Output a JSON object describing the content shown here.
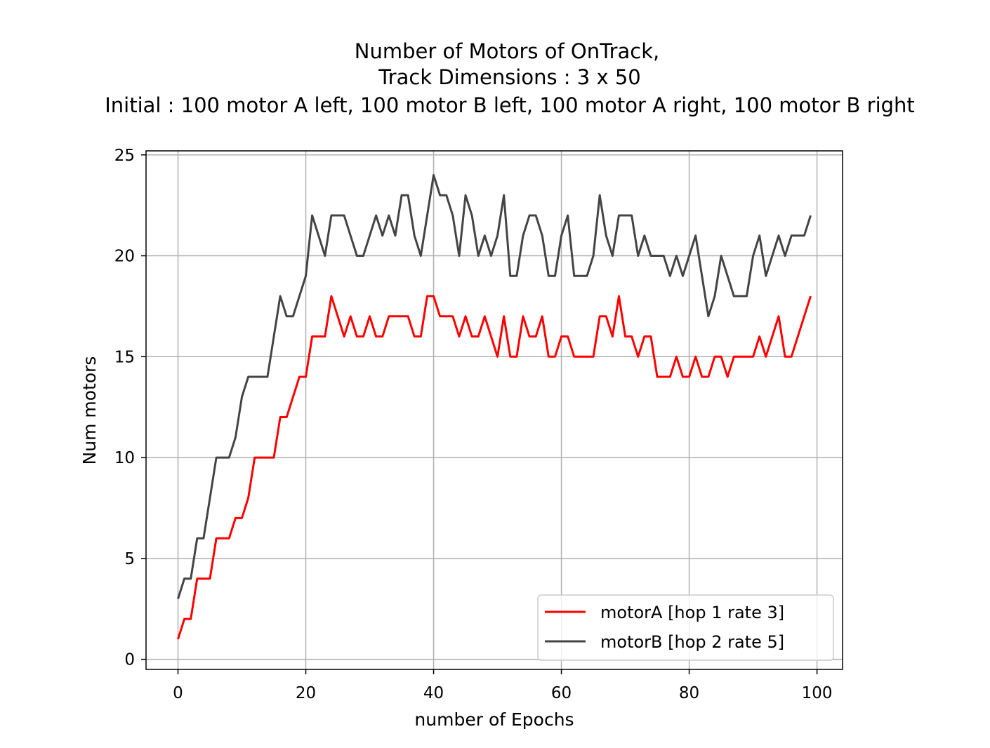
{
  "chart_data": {
    "type": "line",
    "title_lines": [
      "Number of Motors of OnTrack,",
      "Track Dimensions : 3 x 50",
      "Initial : 100 motor A left, 100 motor B left, 100 motor A right, 100 motor B right"
    ],
    "xlabel": "number of Epochs",
    "ylabel": "Num motors",
    "xlim": [
      -5,
      104
    ],
    "ylim": [
      -0.5,
      25.2
    ],
    "xticks": [
      0,
      20,
      40,
      60,
      80,
      100
    ],
    "xtick_labels": [
      "0",
      "20",
      "40",
      "60",
      "80",
      "100"
    ],
    "yticks": [
      0,
      5,
      10,
      15,
      20,
      25
    ],
    "ytick_labels": [
      "0",
      "5",
      "10",
      "15",
      "20",
      "25"
    ],
    "grid": true,
    "legend_position": "lower right",
    "x": [
      0,
      1,
      2,
      3,
      4,
      5,
      6,
      7,
      8,
      9,
      10,
      11,
      12,
      13,
      14,
      15,
      16,
      17,
      18,
      19,
      20,
      21,
      22,
      23,
      24,
      25,
      26,
      27,
      28,
      29,
      30,
      31,
      32,
      33,
      34,
      35,
      36,
      37,
      38,
      39,
      40,
      41,
      42,
      43,
      44,
      45,
      46,
      47,
      48,
      49,
      50,
      51,
      52,
      53,
      54,
      55,
      56,
      57,
      58,
      59,
      60,
      61,
      62,
      63,
      64,
      65,
      66,
      67,
      68,
      69,
      70,
      71,
      72,
      73,
      74,
      75,
      76,
      77,
      78,
      79,
      80,
      81,
      82,
      83,
      84,
      85,
      86,
      87,
      88,
      89,
      90,
      91,
      92,
      93,
      94,
      95,
      96,
      97,
      98,
      99
    ],
    "series": [
      {
        "name": "motorA  [hop 1 rate 3]",
        "color": "#ff0000",
        "values": [
          1,
          2,
          2,
          4,
          4,
          4,
          6,
          6,
          6,
          7,
          7,
          8,
          10,
          10,
          10,
          10,
          12,
          12,
          13,
          14,
          14,
          16,
          16,
          16,
          18,
          17,
          16,
          17,
          16,
          16,
          17,
          16,
          16,
          17,
          17,
          17,
          17,
          16,
          16,
          18,
          18,
          17,
          17,
          17,
          16,
          17,
          16,
          16,
          17,
          16,
          15,
          17,
          15,
          15,
          17,
          16,
          16,
          17,
          15,
          15,
          16,
          16,
          15,
          15,
          15,
          15,
          17,
          17,
          16,
          18,
          16,
          16,
          15,
          16,
          16,
          14,
          14,
          14,
          15,
          14,
          14,
          15,
          14,
          14,
          15,
          15,
          14,
          15,
          15,
          15,
          15,
          16,
          15,
          16,
          17,
          15,
          15,
          16,
          17,
          18
        ]
      },
      {
        "name": "motorB  [hop 2 rate 5]",
        "color": "#444444",
        "values": [
          3,
          4,
          4,
          6,
          6,
          8,
          10,
          10,
          10,
          11,
          13,
          14,
          14,
          14,
          14,
          16,
          18,
          17,
          17,
          18,
          19,
          22,
          21,
          20,
          22,
          22,
          22,
          21,
          20,
          20,
          21,
          22,
          21,
          22,
          21,
          23,
          23,
          21,
          20,
          22,
          24,
          23,
          23,
          22,
          20,
          23,
          22,
          20,
          21,
          20,
          21,
          23,
          19,
          19,
          21,
          22,
          22,
          21,
          19,
          19,
          21,
          22,
          19,
          19,
          19,
          20,
          23,
          21,
          20,
          22,
          22,
          22,
          20,
          21,
          20,
          20,
          20,
          19,
          20,
          19,
          20,
          21,
          19,
          17,
          18,
          20,
          19,
          18,
          18,
          18,
          20,
          21,
          19,
          20,
          21,
          20,
          21,
          21,
          21,
          22
        ]
      }
    ]
  }
}
